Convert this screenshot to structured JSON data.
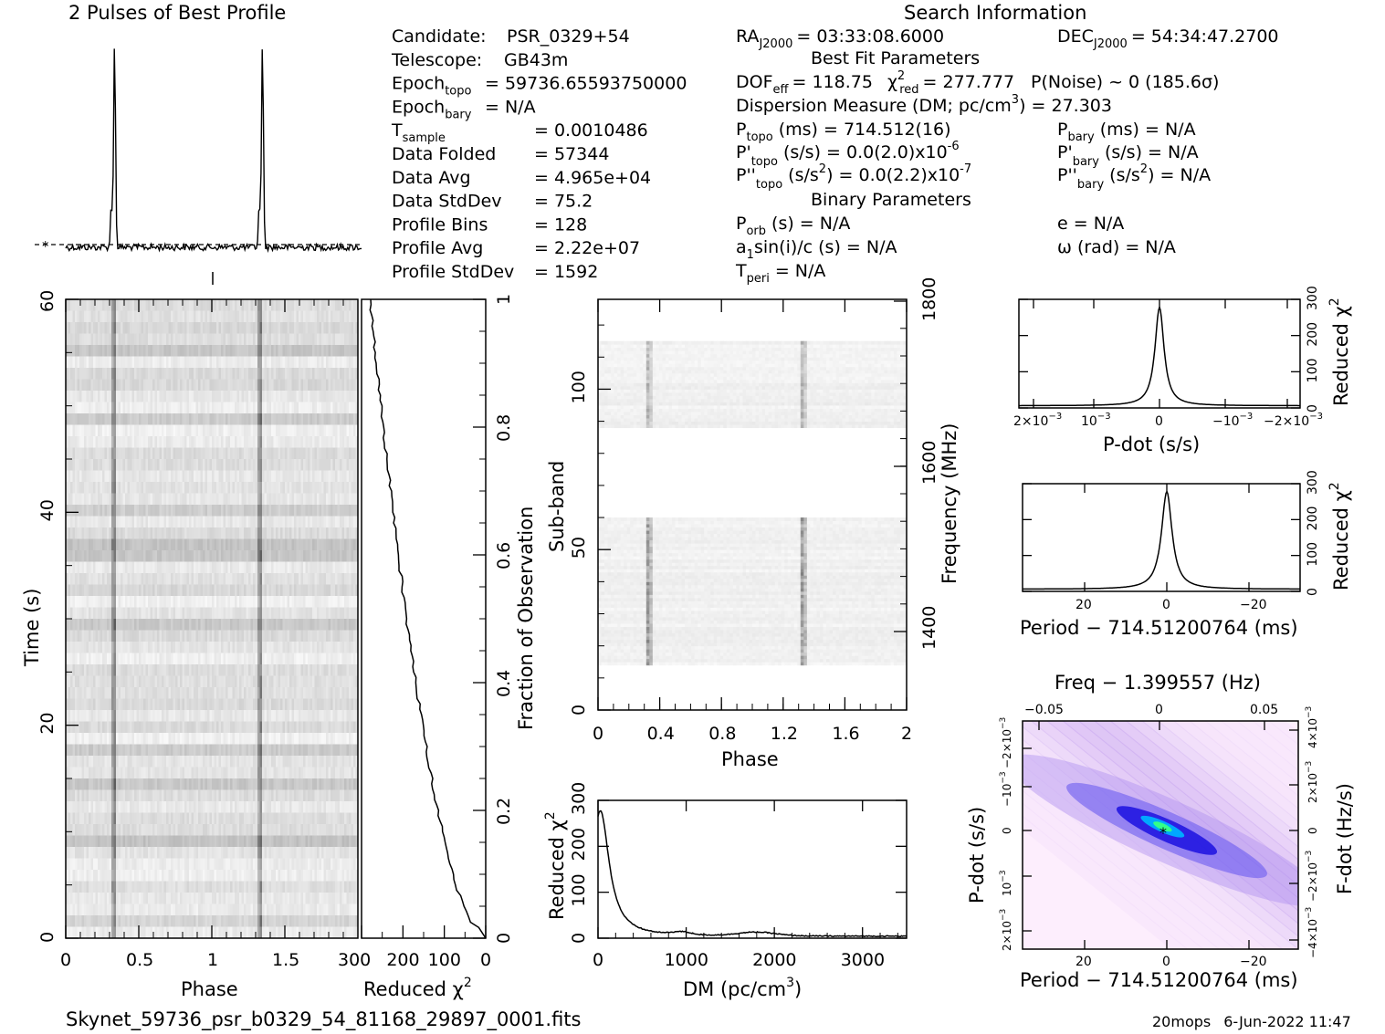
{
  "page": {
    "profile_title": "2 Pulses of Best Profile",
    "search_title": "Search Information",
    "filename": "Skynet_59736_psr_b0329_54_81168_29897_0001.fits",
    "footer_user": "20mops",
    "footer_date": "6-Jun-2022 11:47"
  },
  "info_left": [
    {
      "label": "Candidate:",
      "value": "PSR_0329+54"
    },
    {
      "label": "Telescope:",
      "value": "GB43m"
    },
    {
      "label": "Epoch",
      "sub": "topo",
      "value": "= 59736.65593750000"
    },
    {
      "label": "Epoch",
      "sub": "bary",
      "value": "= N/A"
    },
    {
      "label": "T",
      "sub": "sample",
      "value": "=    0.0010486"
    },
    {
      "label": "Data Folded",
      "value": "=    57344"
    },
    {
      "label": "Data Avg",
      "value": "=    4.965e+04"
    },
    {
      "label": "Data StdDev",
      "value": "=    75.2"
    },
    {
      "label": "Profile Bins",
      "value": "=    128"
    },
    {
      "label": "Profile Avg",
      "value": "=    2.22e+07"
    },
    {
      "label": "Profile StdDev",
      "value": "=    1592"
    }
  ],
  "info_right": {
    "ra": "RA",
    "ra_sub": "J2000",
    "ra_value": "= 03:33:08.6000",
    "dec": "DEC",
    "dec_sub": "J2000",
    "dec_value": "= 54:34:47.2700",
    "best_fit": "Best Fit Parameters",
    "dof": "DOF",
    "dof_sub": "eff",
    "dof_value": "= 118.75",
    "chi": "χ",
    "chi_sup": "2",
    "chi_sub": "red",
    "chi_value": "= 277.777",
    "pnoise": "P(Noise) ~ 0    (185.6σ)",
    "dm_line": "Dispersion Measure (DM; pc/cm",
    "dm_sup": "3",
    "dm_value": ") = 27.303",
    "ptopo": "P",
    "ptopo_sub": "topo",
    "ptopo_value": "(ms) =  714.512(16)",
    "pbary": "P",
    "pbary_sub": "bary",
    "pbary_value": "(ms) = N/A",
    "pdtopo": "P'",
    "pdtopo_sub": "topo",
    "pdtopo_value": "(s/s) = 0.0(2.0)x10",
    "pdtopo_exp": "-6",
    "pdbary": "P'",
    "pdbary_sub": "bary",
    "pdbary_value": "(s/s) = N/A",
    "pddtopo": "P''",
    "pddtopo_sub": "topo",
    "pddtopo_value": "(s/s",
    "pddtopo_sup": "2",
    "pddtopo_value2": ") = 0.0(2.2)x10",
    "pddtopo_exp": "-7",
    "pddbary": "P''",
    "pddbary_sub": "bary",
    "pddbary_value": "(s/s",
    "pddbary_sup": "2",
    "pddbary_value2": ") = N/A",
    "binary": "Binary Parameters",
    "porb": "P",
    "porb_sub": "orb",
    "porb_value": "(s) = N/A",
    "e_value": "e = N/A",
    "a1": "a",
    "a1_sub": "1",
    "a1_value": "sin(i)/c (s) = N/A",
    "omega_value": "ω (rad) = N/A",
    "tperi": "T",
    "tperi_sub": "peri",
    "tperi_value": "= N/A"
  },
  "chart_data": [
    {
      "type": "line",
      "name": "profile",
      "title": "2 Pulses of Best Profile",
      "x_range": [
        0,
        2
      ],
      "peaks_phase": [
        0.33,
        1.33
      ],
      "peak_height": 1.0,
      "baseline": 0.0
    },
    {
      "type": "heatmap",
      "name": "time-phase",
      "xlabel": "Phase",
      "ylabel": "Time (s)",
      "xlim": [
        0,
        2
      ],
      "ylim": [
        0,
        60
      ],
      "x_ticks": [
        "0",
        "0.5",
        "1",
        "1.5"
      ],
      "y_ticks": [
        "0",
        "20",
        "40",
        "60"
      ],
      "pulse_phases": [
        0.33,
        1.33
      ]
    },
    {
      "type": "line",
      "name": "cumulative-chi2",
      "xlabel": "Reduced χ",
      "xlabel_sup": "2",
      "ylabel": "Fraction of Observation",
      "xlim": [
        300,
        0
      ],
      "ylim": [
        0,
        1
      ],
      "x_ticks": [
        "300",
        "200",
        "100",
        "0"
      ],
      "y_ticks": [
        "0",
        "0.2",
        "0.4",
        "0.6",
        "0.8",
        "1"
      ]
    },
    {
      "type": "heatmap",
      "name": "subband-phase",
      "xlabel": "Phase",
      "ylabel": "Sub-band",
      "ylabel2": "Frequency (MHz)",
      "xlim": [
        0,
        2
      ],
      "ylim": [
        0,
        128
      ],
      "x_ticks": [
        "0",
        "0.4",
        "0.8",
        "1.2",
        "1.6",
        "2"
      ],
      "y_ticks": [
        "0",
        "50",
        "100"
      ],
      "freq_ticks": [
        "1400",
        "1600",
        "1800"
      ],
      "band_ranges": [
        [
          14,
          60
        ],
        [
          88,
          115
        ]
      ],
      "pulse_phases": [
        0.33,
        1.33
      ]
    },
    {
      "type": "line",
      "name": "dm-chi2",
      "xlabel": "DM (pc/cm",
      "xlabel_sup": "3",
      "xlabel_end": ")",
      "ylabel": "Reduced χ",
      "ylabel_sup": "2",
      "xlim": [
        0,
        3500
      ],
      "ylim": [
        0,
        300
      ],
      "x_ticks": [
        "0",
        "1000",
        "2000",
        "3000"
      ],
      "y_ticks": [
        "0",
        "100",
        "200",
        "300"
      ],
      "peak_dm": 27.303,
      "peak_value": 278
    },
    {
      "type": "line",
      "name": "pdot-chi2",
      "xlabel": "P-dot (s/s)",
      "ylabel": "Reduced χ",
      "ylabel_sup": "2",
      "y_ticks": [
        "0",
        "100",
        "200",
        "300"
      ],
      "x_tick_labels": [
        "2×10",
        "10",
        "0",
        "−10",
        "−2×10"
      ],
      "x_tick_exps": [
        "−3",
        "−3",
        "",
        "−3",
        "−3"
      ],
      "peak_value": 278
    },
    {
      "type": "line",
      "name": "period-chi2",
      "xlabel": "Period − 714.51200764 (ms)",
      "ylabel": "Reduced χ",
      "ylabel_sup": "2",
      "x_ticks": [
        "20",
        "0",
        "−20"
      ],
      "y_ticks": [
        "0",
        "100",
        "200",
        "300"
      ],
      "peak_value": 278
    },
    {
      "type": "heatmap",
      "name": "period-pdot",
      "xlabel": "Period − 714.51200764 (ms)",
      "top_label": "Freq − 1.399557 (Hz)",
      "ylabel": "P-dot (s/s)",
      "ylabel2": "F-dot (Hz/s)",
      "x_ticks": [
        "20",
        "0",
        "−20"
      ],
      "top_ticks": [
        "−0.05",
        "0",
        "0.05"
      ]
    }
  ]
}
